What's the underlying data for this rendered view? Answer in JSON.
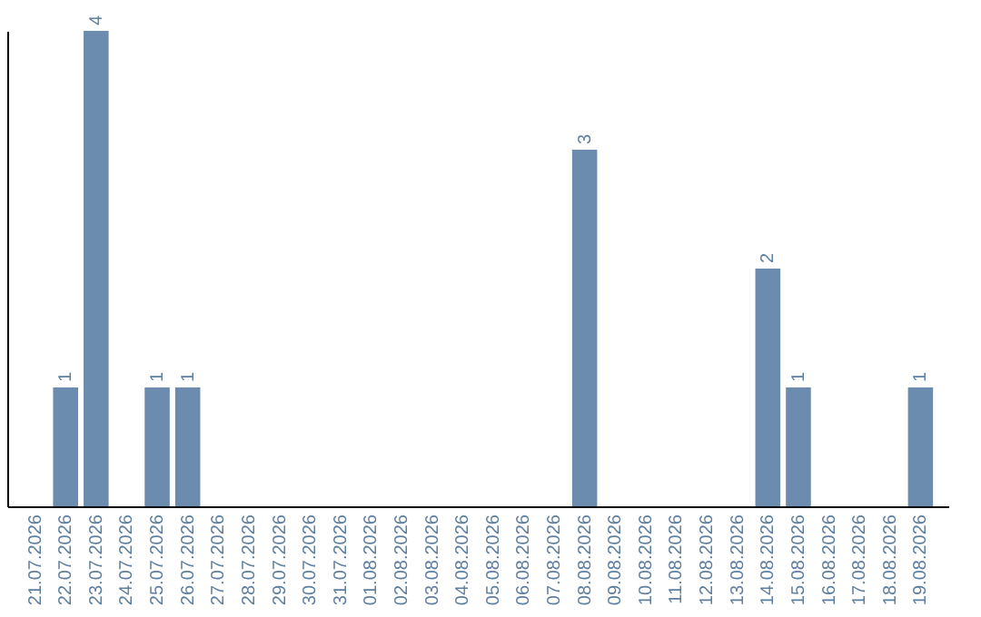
{
  "chart_data": {
    "type": "bar",
    "categories": [
      "21.07.2026",
      "22.07.2026",
      "23.07.2026",
      "24.07.2026",
      "25.07.2026",
      "26.07.2026",
      "27.07.2026",
      "28.07.2026",
      "29.07.2026",
      "30.07.2026",
      "31.07.2026",
      "01.08.2026",
      "02.08.2026",
      "03.08.2026",
      "04.08.2026",
      "05.08.2026",
      "06.08.2026",
      "07.08.2026",
      "08.08.2026",
      "09.08.2026",
      "10.08.2026",
      "11.08.2026",
      "12.08.2026",
      "13.08.2026",
      "14.08.2026",
      "15.08.2026",
      "16.08.2026",
      "17.08.2026",
      "18.08.2026",
      "19.08.2026"
    ],
    "values": [
      0,
      1,
      4,
      0,
      1,
      1,
      0,
      0,
      0,
      0,
      0,
      0,
      0,
      0,
      0,
      0,
      0,
      0,
      3,
      0,
      0,
      0,
      0,
      0,
      2,
      1,
      0,
      0,
      0,
      1
    ],
    "value_labels": [
      null,
      "1",
      "4",
      null,
      "1",
      "1",
      null,
      null,
      null,
      null,
      null,
      null,
      null,
      null,
      null,
      null,
      null,
      null,
      "3",
      null,
      null,
      null,
      null,
      null,
      "2",
      "1",
      null,
      null,
      null,
      "1"
    ],
    "color": "#6b8cae"
  }
}
